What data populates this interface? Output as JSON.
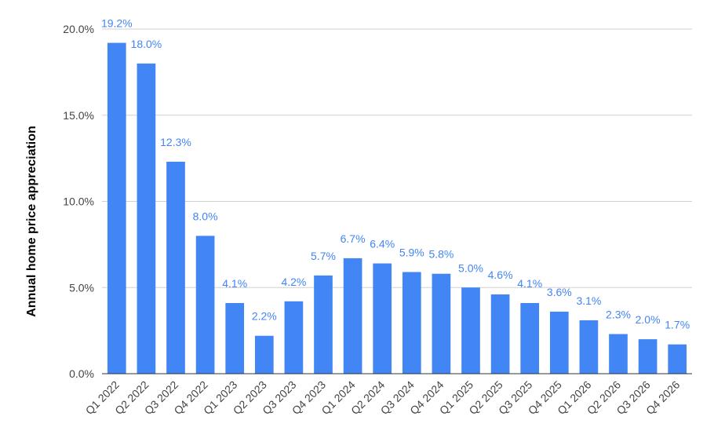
{
  "chart_data": {
    "type": "bar",
    "title": "",
    "xlabel": "",
    "ylabel": "Annual home price appreciation",
    "categories": [
      "Q1 2022",
      "Q2 2022",
      "Q3 2022",
      "Q4 2022",
      "Q1 2023",
      "Q2 2023",
      "Q3 2023",
      "Q4 2023",
      "Q1 2024",
      "Q2 2024",
      "Q3 2024",
      "Q4 2024",
      "Q1 2025",
      "Q2 2025",
      "Q3 2025",
      "Q4 2025",
      "Q1 2026",
      "Q2 2026",
      "Q3 2026",
      "Q4 2026"
    ],
    "values": [
      19.2,
      18.0,
      12.3,
      8.0,
      4.1,
      2.2,
      4.2,
      5.7,
      6.7,
      6.4,
      5.9,
      5.8,
      5.0,
      4.6,
      4.1,
      3.6,
      3.1,
      2.3,
      2.0,
      1.7
    ],
    "data_labels": [
      "19.2%",
      "18.0%",
      "12.3%",
      "8.0%",
      "4.1%",
      "2.2%",
      "4.2%",
      "5.7%",
      "6.7%",
      "6.4%",
      "5.9%",
      "5.8%",
      "5.0%",
      "4.6%",
      "4.1%",
      "3.6%",
      "3.1%",
      "2.3%",
      "2.0%",
      "1.7%"
    ],
    "ylim": [
      0,
      20
    ],
    "y_ticks": [
      0,
      5,
      10,
      15,
      20
    ],
    "y_tick_labels": [
      "0.0%",
      "5.0%",
      "10.0%",
      "15.0%",
      "20.0%"
    ],
    "grid": true,
    "legend": "none",
    "colors": {
      "bar": "#4285f4",
      "label": "#4285f4",
      "grid": "#d0d0d0",
      "axis": "#333333"
    }
  }
}
